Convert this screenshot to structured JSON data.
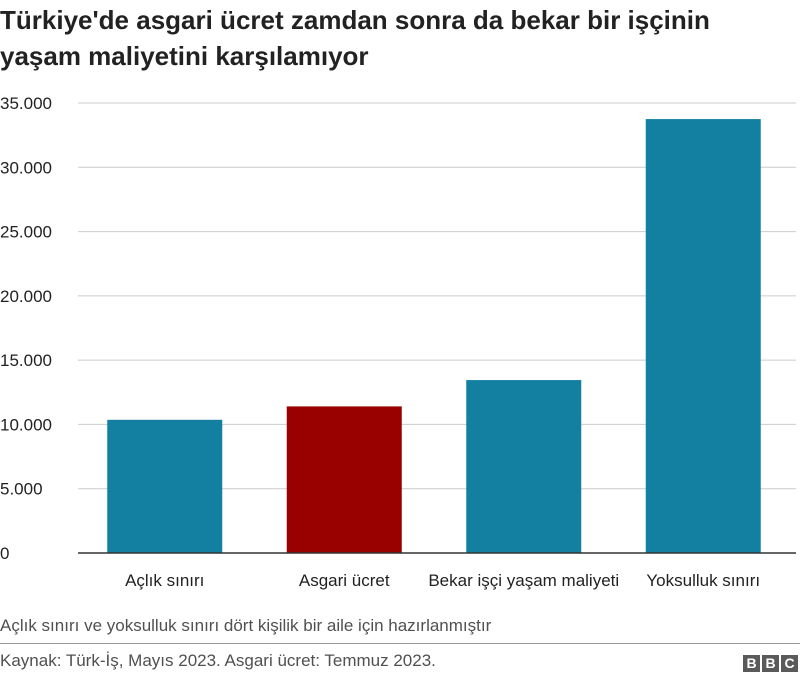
{
  "title": "Türkiye'de asgari ücret zamdan sonra da bekar bir işçinin yaşam maliyetini karşılamıyor",
  "note": "Açlık sınırı ve yoksulluk sınırı dört kişilik bir aile için hazırlanmıştır",
  "source": "Kaynak: Türk-İş, Mayıs 2023. Asgari ücret: Temmuz 2023.",
  "logo": [
    "B",
    "B",
    "C"
  ],
  "chart_data": {
    "type": "bar",
    "categories": [
      "Açlık sınırı",
      "Asgari ücret",
      "Bekar işçi yaşam maliyeti",
      "Yoksulluk sınırı"
    ],
    "values": [
      10360,
      11402,
      13450,
      33750
    ],
    "bar_colors": [
      "#1380a1",
      "#990000",
      "#1380a1",
      "#1380a1"
    ],
    "ylim": [
      0,
      35000
    ],
    "yticks": [
      0,
      5000,
      10000,
      15000,
      20000,
      25000,
      30000,
      35000
    ],
    "ytick_labels": [
      "0",
      "5.000",
      "10.000",
      "15.000",
      "20.000",
      "25.000",
      "30.000",
      "35.000"
    ],
    "grid": true,
    "gridline_color": "#cbcbcb",
    "title": "",
    "xlabel": "",
    "ylabel": ""
  }
}
